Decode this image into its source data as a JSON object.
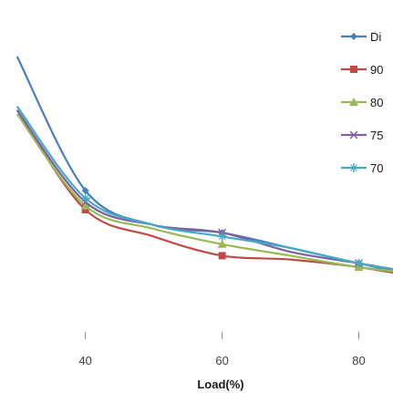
{
  "chart_data": {
    "type": "line",
    "xlabel": "Load(%)",
    "ylabel": "",
    "title": "",
    "x": [
      30,
      40,
      50,
      60,
      70,
      80,
      90
    ],
    "x_ticks": [
      "40",
      "60",
      "80"
    ],
    "xlim": [
      27.5,
      85
    ],
    "ylim": [
      0,
      1
    ],
    "legend_position": "right",
    "series": [
      {
        "name": "Di",
        "color": "#4a7ebb",
        "marker": "diamond",
        "values": [
          0.9,
          0.55,
          0.46,
          0.44,
          0.4,
          0.36,
          0.32
        ]
      },
      {
        "name": "90",
        "color": "#be4b48",
        "marker": "square",
        "values": [
          0.76,
          0.5,
          0.43,
          0.38,
          0.37,
          0.35,
          0.32
        ]
      },
      {
        "name": "80",
        "color": "#98b954",
        "marker": "triangle",
        "values": [
          0.75,
          0.51,
          0.45,
          0.41,
          0.38,
          0.35,
          0.33
        ]
      },
      {
        "name": "75",
        "color": "#7d60a0",
        "marker": "x",
        "values": [
          0.76,
          0.52,
          0.46,
          0.44,
          0.39,
          0.36,
          0.33
        ]
      },
      {
        "name": "70",
        "color": "#46aac5",
        "marker": "star",
        "values": [
          0.77,
          0.53,
          0.46,
          0.43,
          0.4,
          0.36,
          0.33
        ]
      }
    ]
  }
}
